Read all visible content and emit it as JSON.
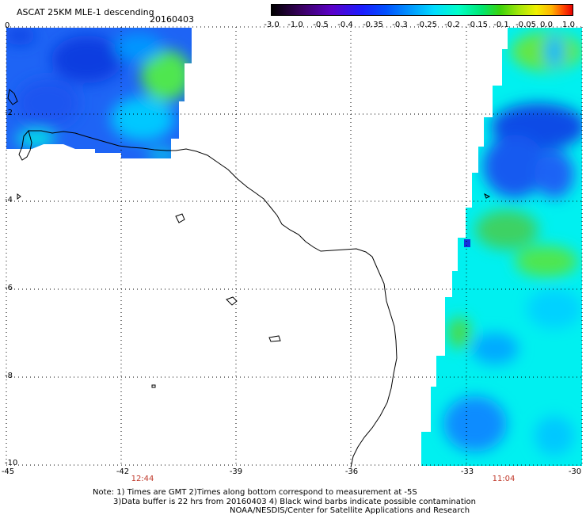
{
  "title": "ASCAT 25KM MLE-1 descending",
  "date": "20160403",
  "colorbar": {
    "ticks": [
      "-3.0",
      "-1.0",
      "-0.5",
      "-0.4",
      "-0.35",
      "-0.3",
      "-0.25",
      "-0.2",
      "-0.15",
      "-0.1",
      "-0.05",
      "0.0",
      "1.0"
    ]
  },
  "axes": {
    "lat_labels": [
      "0",
      "-2",
      "-4",
      "-6",
      "-8",
      "-10"
    ],
    "lon_labels": [
      "-45",
      "-42",
      "-39",
      "-36",
      "-33",
      "-30"
    ]
  },
  "times": [
    "12:44",
    "11:04"
  ],
  "notes": [
    "Note: 1) Times are GMT 2)Times along bottom correspond to measurement at -5S",
    "3)Data buffer is 22 hrs from 20160403 4) Black wind barbs indicate possible contamination",
    "NOAA/NESDIS/Center for Satellite Applications and Research"
  ],
  "colors": {
    "coast": "#000000",
    "grid": "#000000",
    "time_label": "#c0392b",
    "swath_blue": "#1450f0",
    "swath_cyan": "#00f0f0",
    "swath_green": "#32e650"
  }
}
